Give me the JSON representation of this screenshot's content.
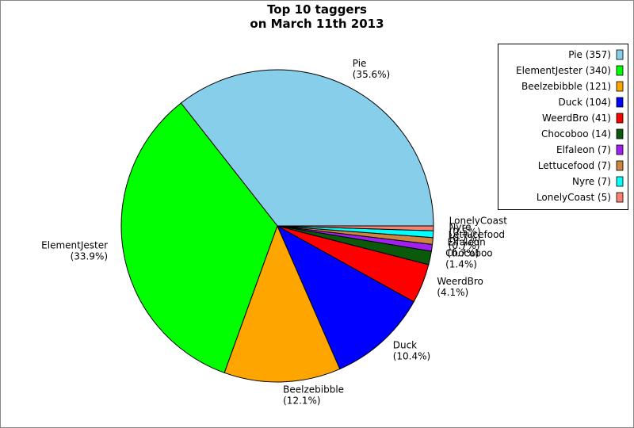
{
  "chart_data": {
    "type": "pie",
    "title": "Top 10 taggers",
    "subtitle": "on March 11th 2013",
    "categories": [
      "Pie",
      "ElementJester",
      "Beelzebibble",
      "Duck",
      "WeerdBro",
      "Chocoboo",
      "Elfaleon",
      "Lettucefood",
      "Nyre",
      "LonelyCoast"
    ],
    "values": [
      357,
      340,
      121,
      104,
      41,
      14,
      7,
      7,
      7,
      5
    ],
    "percent_labels": [
      "(35.6%)",
      "(33.9%)",
      "(12.1%)",
      "(10.4%)",
      "(4.1%)",
      "(1.4%)",
      "(0.7%)",
      "(0.7%)",
      "(0.7%)",
      "(0.5%)"
    ],
    "legend_labels": [
      "Pie (357)",
      "ElementJester (340)",
      "Beelzebibble (121)",
      "Duck (104)",
      "WeerdBro (41)",
      "Chocoboo (14)",
      "Elfaleon (7)",
      "Lettucefood (7)",
      "Nyre (7)",
      "LonelyCoast (5)"
    ],
    "colors": [
      "#87ceeb",
      "#00ff00",
      "#ffa500",
      "#0000ff",
      "#ff0000",
      "#0b5a0b",
      "#a020f0",
      "#cd853f",
      "#00ffff",
      "#fa8072"
    ],
    "legend": "upper right"
  }
}
